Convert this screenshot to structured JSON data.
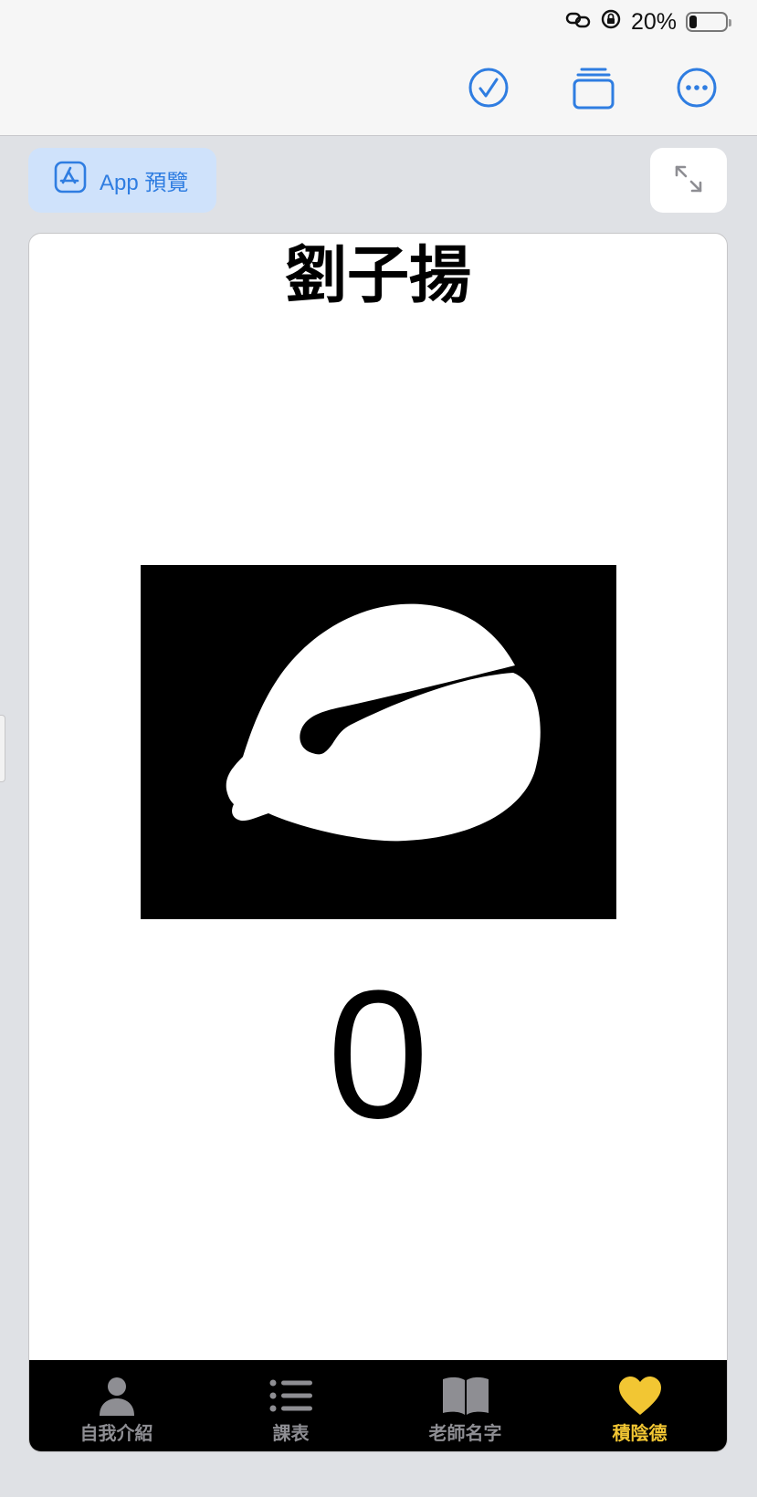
{
  "status_bar": {
    "battery_percent": "20%",
    "battery_level": 0.2
  },
  "toolbar": {
    "done_icon": "checkmark-circle-icon",
    "pages_icon": "stacked-pages-icon",
    "more_icon": "ellipsis-circle-icon"
  },
  "app_preview": {
    "label": "App 預覽",
    "icon": "app-store-icon"
  },
  "expand_icon": "expand-arrows-icon",
  "screen": {
    "title": "劉子揚",
    "image": "white-blob-on-black",
    "counter": "0"
  },
  "tabs": [
    {
      "label": "自我介紹",
      "icon": "person-icon",
      "active": false
    },
    {
      "label": "課表",
      "icon": "list-icon",
      "active": false
    },
    {
      "label": "老師名字",
      "icon": "book-icon",
      "active": false
    },
    {
      "label": "積陰德",
      "icon": "heart-icon",
      "active": true
    }
  ],
  "colors": {
    "accent": "#2f7de1",
    "active_tab": "#f2c633",
    "inactive_tab": "#8e8e93"
  }
}
